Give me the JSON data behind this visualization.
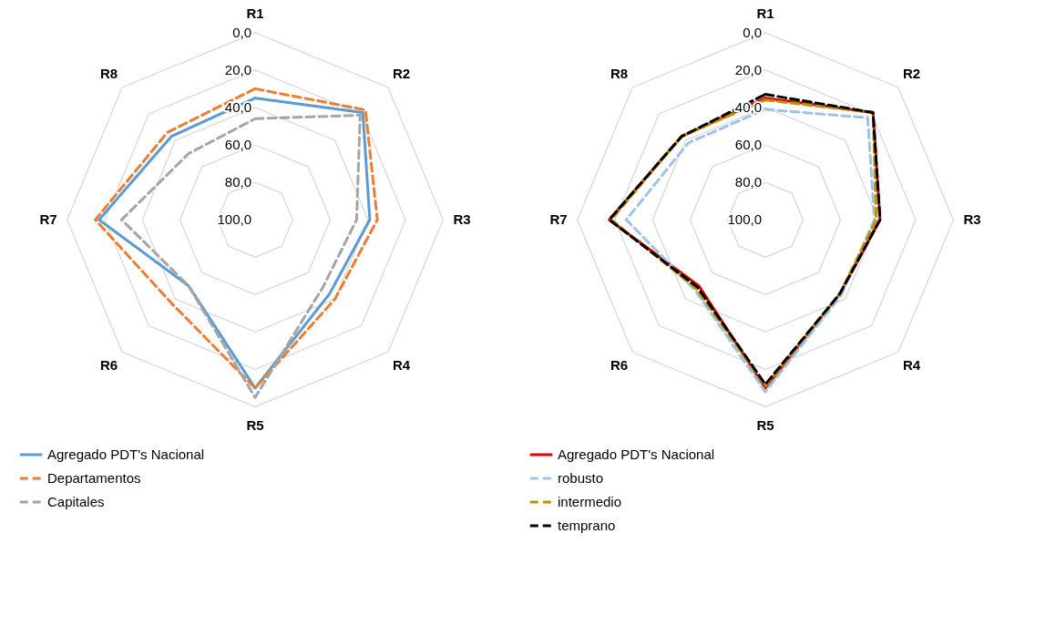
{
  "chart_data": [
    {
      "type": "radar",
      "categories": [
        "R1",
        "R2",
        "R3",
        "R4",
        "R5",
        "R6",
        "R7",
        "R8"
      ],
      "ylim": [
        100,
        0
      ],
      "yticks": [
        {
          "value": 0,
          "label": "0,0"
        },
        {
          "value": 20,
          "label": "20,0"
        },
        {
          "value": 40,
          "label": "40,0"
        },
        {
          "value": 60,
          "label": "60,0"
        },
        {
          "value": 80,
          "label": "80,0"
        },
        {
          "value": 100,
          "label": "100,0"
        }
      ],
      "grid": true,
      "legend": "bottom",
      "series": [
        {
          "name": "Agregado PDT's Nacional",
          "color": "#5b9bd5",
          "line_style": "solid",
          "values": [
            35,
            19,
            39,
            44,
            10,
            50,
            17,
            37
          ]
        },
        {
          "name": "Departamentos",
          "color": "#ed7d31",
          "line_style": "dashed",
          "values": [
            30,
            17,
            35,
            40,
            10,
            37,
            15,
            34
          ]
        },
        {
          "name": "Capitales",
          "color": "#a5a5a5",
          "line_style": "dashed",
          "values": [
            46,
            21,
            46,
            49,
            5,
            50,
            29,
            50
          ]
        }
      ]
    },
    {
      "type": "radar",
      "categories": [
        "R1",
        "R2",
        "R3",
        "R4",
        "R5",
        "R6",
        "R7",
        "R8"
      ],
      "ylim": [
        100,
        0
      ],
      "yticks": [
        {
          "value": 0,
          "label": "0,0"
        },
        {
          "value": 20,
          "label": "20,0"
        },
        {
          "value": 40,
          "label": "40,0"
        },
        {
          "value": 60,
          "label": "60,0"
        },
        {
          "value": 80,
          "label": "80,0"
        },
        {
          "value": 100,
          "label": "100,0"
        }
      ],
      "grid": true,
      "legend": "bottom",
      "series": [
        {
          "name": "Agregado PDT's Nacional",
          "color": "#e00000",
          "line_style": "solid",
          "values": [
            35,
            19,
            39,
            44,
            10,
            50,
            17,
            37
          ]
        },
        {
          "name": "robusto",
          "color": "#9dc3e6",
          "line_style": "dashed",
          "values": [
            41,
            23,
            42,
            43,
            8,
            47,
            26,
            42
          ]
        },
        {
          "name": "intermedio",
          "color": "#bf9000",
          "line_style": "dashed",
          "values": [
            36,
            19,
            41,
            44,
            11,
            48,
            18,
            37
          ]
        },
        {
          "name": "temprano",
          "color": "#000000",
          "line_style": "dashed",
          "values": [
            33,
            19,
            39,
            44,
            12,
            49,
            17,
            37
          ]
        }
      ]
    }
  ]
}
